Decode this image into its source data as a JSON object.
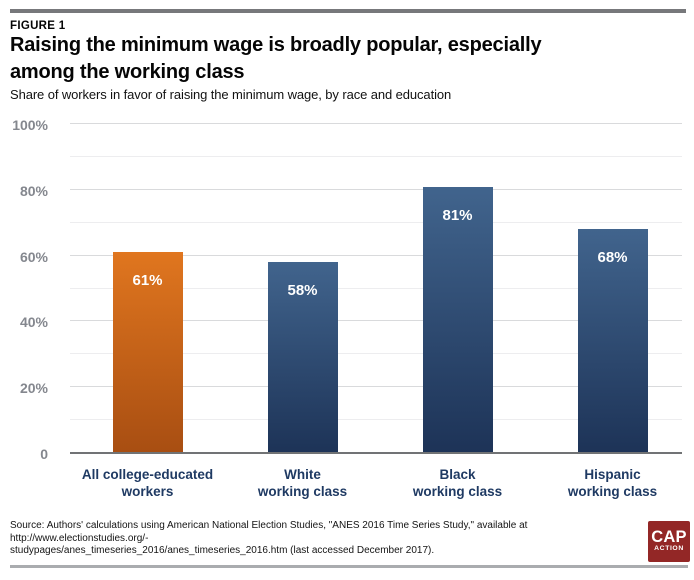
{
  "header": {
    "figure_label": "FIGURE 1",
    "title_line1": "Raising the minimum wage is broadly popular, especially",
    "title_line2": "among the working class",
    "subtitle": "Share of workers in favor of raising the minimum wage, by race and education"
  },
  "footer": {
    "source_line1": "Source: Authors' calculations using American National Election Studies, \"ANES 2016 Time Series Study,\" available at http://www.electionstudies.org/-",
    "source_line2": "studypages/anes_timeseries_2016/anes_timeseries_2016.htm (last accessed December 2017).",
    "logo_line1": "CAP",
    "logo_line2": "ACTION",
    "logo_bg_color": "#932726"
  },
  "chart_data": {
    "type": "bar",
    "title": "Raising the minimum wage is broadly popular, especially among the working class",
    "subtitle": "Share of workers in favor of raising the minimum wage, by race and education",
    "categories": [
      "All college-educated workers",
      "White working class",
      "Black working class",
      "Hispanic working class"
    ],
    "category_lines": [
      [
        "All college-educated",
        "workers"
      ],
      [
        "White",
        "working class"
      ],
      [
        "Black",
        "working class"
      ],
      [
        "Hispanic",
        "working class"
      ]
    ],
    "values": [
      61,
      58,
      81,
      68
    ],
    "value_labels": [
      "61%",
      "58%",
      "81%",
      "68%"
    ],
    "bar_gradient_top": [
      "#e0761f",
      "#41648d",
      "#41648d",
      "#41648d"
    ],
    "bar_gradient_bottom": [
      "#a84e12",
      "#1d3357",
      "#1d3357",
      "#1d3357"
    ],
    "xlabel": "",
    "ylabel": "",
    "ylim": [
      0,
      100
    ],
    "yticks": [
      {
        "value": 0,
        "label": "0"
      },
      {
        "value": 20,
        "label": "20%"
      },
      {
        "value": 40,
        "label": "40%"
      },
      {
        "value": 60,
        "label": "60%"
      },
      {
        "value": 80,
        "label": "80%"
      },
      {
        "value": 100,
        "label": "100%"
      }
    ],
    "minor_gridline_values": [
      10,
      30,
      50,
      70,
      90
    ],
    "grid": true,
    "legend": "none",
    "value_label_color": "#ffffff",
    "category_label_color": "#1f3a63",
    "tick_label_color": "#84878e"
  }
}
